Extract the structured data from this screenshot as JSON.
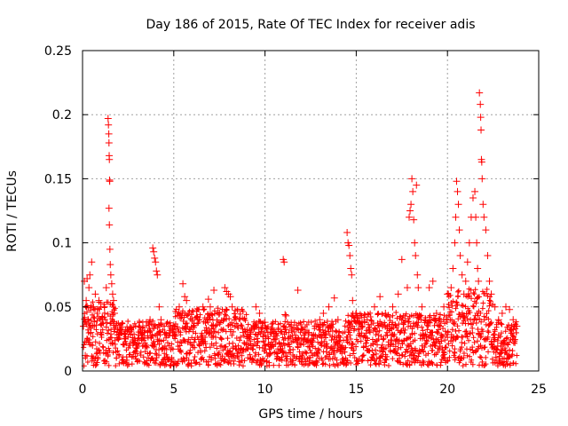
{
  "chart_data": {
    "type": "scatter",
    "title": "Day 186 of 2015, Rate Of TEC Index for receiver adis",
    "xlabel": "GPS time / hours",
    "ylabel": "ROTI / TECUs",
    "xlim": [
      0,
      25
    ],
    "ylim": [
      0,
      0.25
    ],
    "x_ticks": [
      0,
      5,
      10,
      15,
      20,
      25
    ],
    "x_tick_labels": [
      "0",
      "5",
      "10",
      "15",
      "20",
      "25"
    ],
    "y_ticks": [
      0,
      0.05,
      0.1,
      0.15,
      0.2,
      0.25
    ],
    "y_tick_labels": [
      "0",
      "0.05",
      "0.1",
      "0.15",
      "0.2",
      "0.25"
    ],
    "grid": true,
    "marker": "+",
    "series_color": "#ff0000",
    "series": [
      {
        "name": "ROTI",
        "points": [
          [
            0.05,
            0.035
          ],
          [
            0.1,
            0.07
          ],
          [
            0.15,
            0.012
          ],
          [
            0.2,
            0.055
          ],
          [
            0.25,
            0.072
          ],
          [
            0.3,
            0.04
          ],
          [
            0.35,
            0.065
          ],
          [
            0.4,
            0.075
          ],
          [
            0.45,
            0.03
          ],
          [
            0.5,
            0.085
          ],
          [
            0.55,
            0.02
          ],
          [
            0.6,
            0.05
          ],
          [
            0.7,
            0.06
          ],
          [
            0.8,
            0.045
          ],
          [
            0.9,
            0.055
          ],
          [
            1.0,
            0.03
          ],
          [
            1.1,
            0.04
          ],
          [
            1.2,
            0.05
          ],
          [
            1.3,
            0.065
          ],
          [
            1.4,
            0.197
          ],
          [
            1.42,
            0.192
          ],
          [
            1.44,
            0.185
          ],
          [
            1.45,
            0.178
          ],
          [
            1.46,
            0.168
          ],
          [
            1.47,
            0.165
          ],
          [
            1.48,
            0.149
          ],
          [
            1.49,
            0.148
          ],
          [
            1.45,
            0.127
          ],
          [
            1.47,
            0.114
          ],
          [
            1.5,
            0.095
          ],
          [
            1.52,
            0.083
          ],
          [
            1.55,
            0.075
          ],
          [
            1.6,
            0.068
          ],
          [
            1.65,
            0.06
          ],
          [
            1.7,
            0.055
          ],
          [
            1.75,
            0.045
          ],
          [
            2.0,
            0.03
          ],
          [
            2.3,
            0.025
          ],
          [
            2.6,
            0.02
          ],
          [
            3.0,
            0.022
          ],
          [
            3.4,
            0.03
          ],
          [
            3.7,
            0.04
          ],
          [
            3.85,
            0.096
          ],
          [
            3.9,
            0.093
          ],
          [
            3.95,
            0.088
          ],
          [
            4.0,
            0.085
          ],
          [
            4.05,
            0.078
          ],
          [
            4.1,
            0.075
          ],
          [
            4.2,
            0.05
          ],
          [
            4.3,
            0.04
          ],
          [
            4.5,
            0.03
          ],
          [
            4.8,
            0.035
          ],
          [
            5.0,
            0.03
          ],
          [
            5.3,
            0.05
          ],
          [
            5.5,
            0.068
          ],
          [
            5.6,
            0.058
          ],
          [
            5.7,
            0.055
          ],
          [
            5.8,
            0.045
          ],
          [
            6.0,
            0.04
          ],
          [
            6.3,
            0.042
          ],
          [
            6.6,
            0.05
          ],
          [
            6.9,
            0.056
          ],
          [
            7.0,
            0.05
          ],
          [
            7.2,
            0.063
          ],
          [
            7.5,
            0.045
          ],
          [
            7.8,
            0.065
          ],
          [
            7.9,
            0.062
          ],
          [
            8.0,
            0.06
          ],
          [
            8.1,
            0.058
          ],
          [
            8.2,
            0.05
          ],
          [
            8.5,
            0.035
          ],
          [
            8.8,
            0.03
          ],
          [
            9.2,
            0.03
          ],
          [
            9.5,
            0.05
          ],
          [
            9.7,
            0.045
          ],
          [
            10.0,
            0.038
          ],
          [
            10.3,
            0.03
          ],
          [
            10.6,
            0.025
          ],
          [
            11.0,
            0.087
          ],
          [
            11.05,
            0.085
          ],
          [
            11.1,
            0.044
          ],
          [
            11.15,
            0.043
          ],
          [
            11.3,
            0.03
          ],
          [
            11.8,
            0.063
          ],
          [
            12.0,
            0.025
          ],
          [
            12.4,
            0.03
          ],
          [
            12.8,
            0.035
          ],
          [
            13.0,
            0.04
          ],
          [
            13.2,
            0.045
          ],
          [
            13.5,
            0.05
          ],
          [
            13.8,
            0.057
          ],
          [
            14.0,
            0.04
          ],
          [
            14.5,
            0.108
          ],
          [
            14.55,
            0.1
          ],
          [
            14.6,
            0.098
          ],
          [
            14.65,
            0.09
          ],
          [
            14.7,
            0.08
          ],
          [
            14.75,
            0.075
          ],
          [
            14.8,
            0.055
          ],
          [
            15.0,
            0.045
          ],
          [
            15.3,
            0.035
          ],
          [
            15.6,
            0.04
          ],
          [
            16.0,
            0.05
          ],
          [
            16.3,
            0.058
          ],
          [
            16.6,
            0.045
          ],
          [
            17.0,
            0.05
          ],
          [
            17.3,
            0.06
          ],
          [
            17.5,
            0.087
          ],
          [
            17.8,
            0.065
          ],
          [
            17.9,
            0.12
          ],
          [
            17.95,
            0.125
          ],
          [
            18.0,
            0.13
          ],
          [
            18.05,
            0.15
          ],
          [
            18.1,
            0.14
          ],
          [
            18.15,
            0.118
          ],
          [
            18.2,
            0.1
          ],
          [
            18.25,
            0.09
          ],
          [
            18.3,
            0.145
          ],
          [
            18.35,
            0.075
          ],
          [
            18.4,
            0.065
          ],
          [
            18.6,
            0.05
          ],
          [
            18.8,
            0.04
          ],
          [
            19.0,
            0.065
          ],
          [
            19.2,
            0.07
          ],
          [
            19.4,
            0.045
          ],
          [
            19.6,
            0.035
          ],
          [
            19.8,
            0.05
          ],
          [
            20.0,
            0.06
          ],
          [
            20.2,
            0.065
          ],
          [
            20.3,
            0.08
          ],
          [
            20.4,
            0.1
          ],
          [
            20.45,
            0.12
          ],
          [
            20.5,
            0.148
          ],
          [
            20.55,
            0.14
          ],
          [
            20.6,
            0.13
          ],
          [
            20.65,
            0.11
          ],
          [
            20.7,
            0.09
          ],
          [
            20.8,
            0.075
          ],
          [
            20.9,
            0.06
          ],
          [
            21.0,
            0.07
          ],
          [
            21.1,
            0.085
          ],
          [
            21.2,
            0.1
          ],
          [
            21.3,
            0.12
          ],
          [
            21.4,
            0.135
          ],
          [
            21.5,
            0.14
          ],
          [
            21.55,
            0.12
          ],
          [
            21.6,
            0.1
          ],
          [
            21.65,
            0.08
          ],
          [
            21.7,
            0.07
          ],
          [
            21.75,
            0.217
          ],
          [
            21.8,
            0.208
          ],
          [
            21.82,
            0.198
          ],
          [
            21.84,
            0.188
          ],
          [
            21.86,
            0.165
          ],
          [
            21.88,
            0.163
          ],
          [
            21.9,
            0.15
          ],
          [
            21.95,
            0.13
          ],
          [
            22.0,
            0.12
          ],
          [
            22.1,
            0.11
          ],
          [
            22.2,
            0.09
          ],
          [
            22.3,
            0.07
          ],
          [
            22.4,
            0.06
          ],
          [
            22.6,
            0.05
          ],
          [
            22.8,
            0.04
          ],
          [
            23.0,
            0.045
          ],
          [
            23.2,
            0.05
          ],
          [
            23.4,
            0.048
          ],
          [
            23.6,
            0.04
          ],
          [
            23.8,
            0.035
          ]
        ]
      }
    ]
  }
}
